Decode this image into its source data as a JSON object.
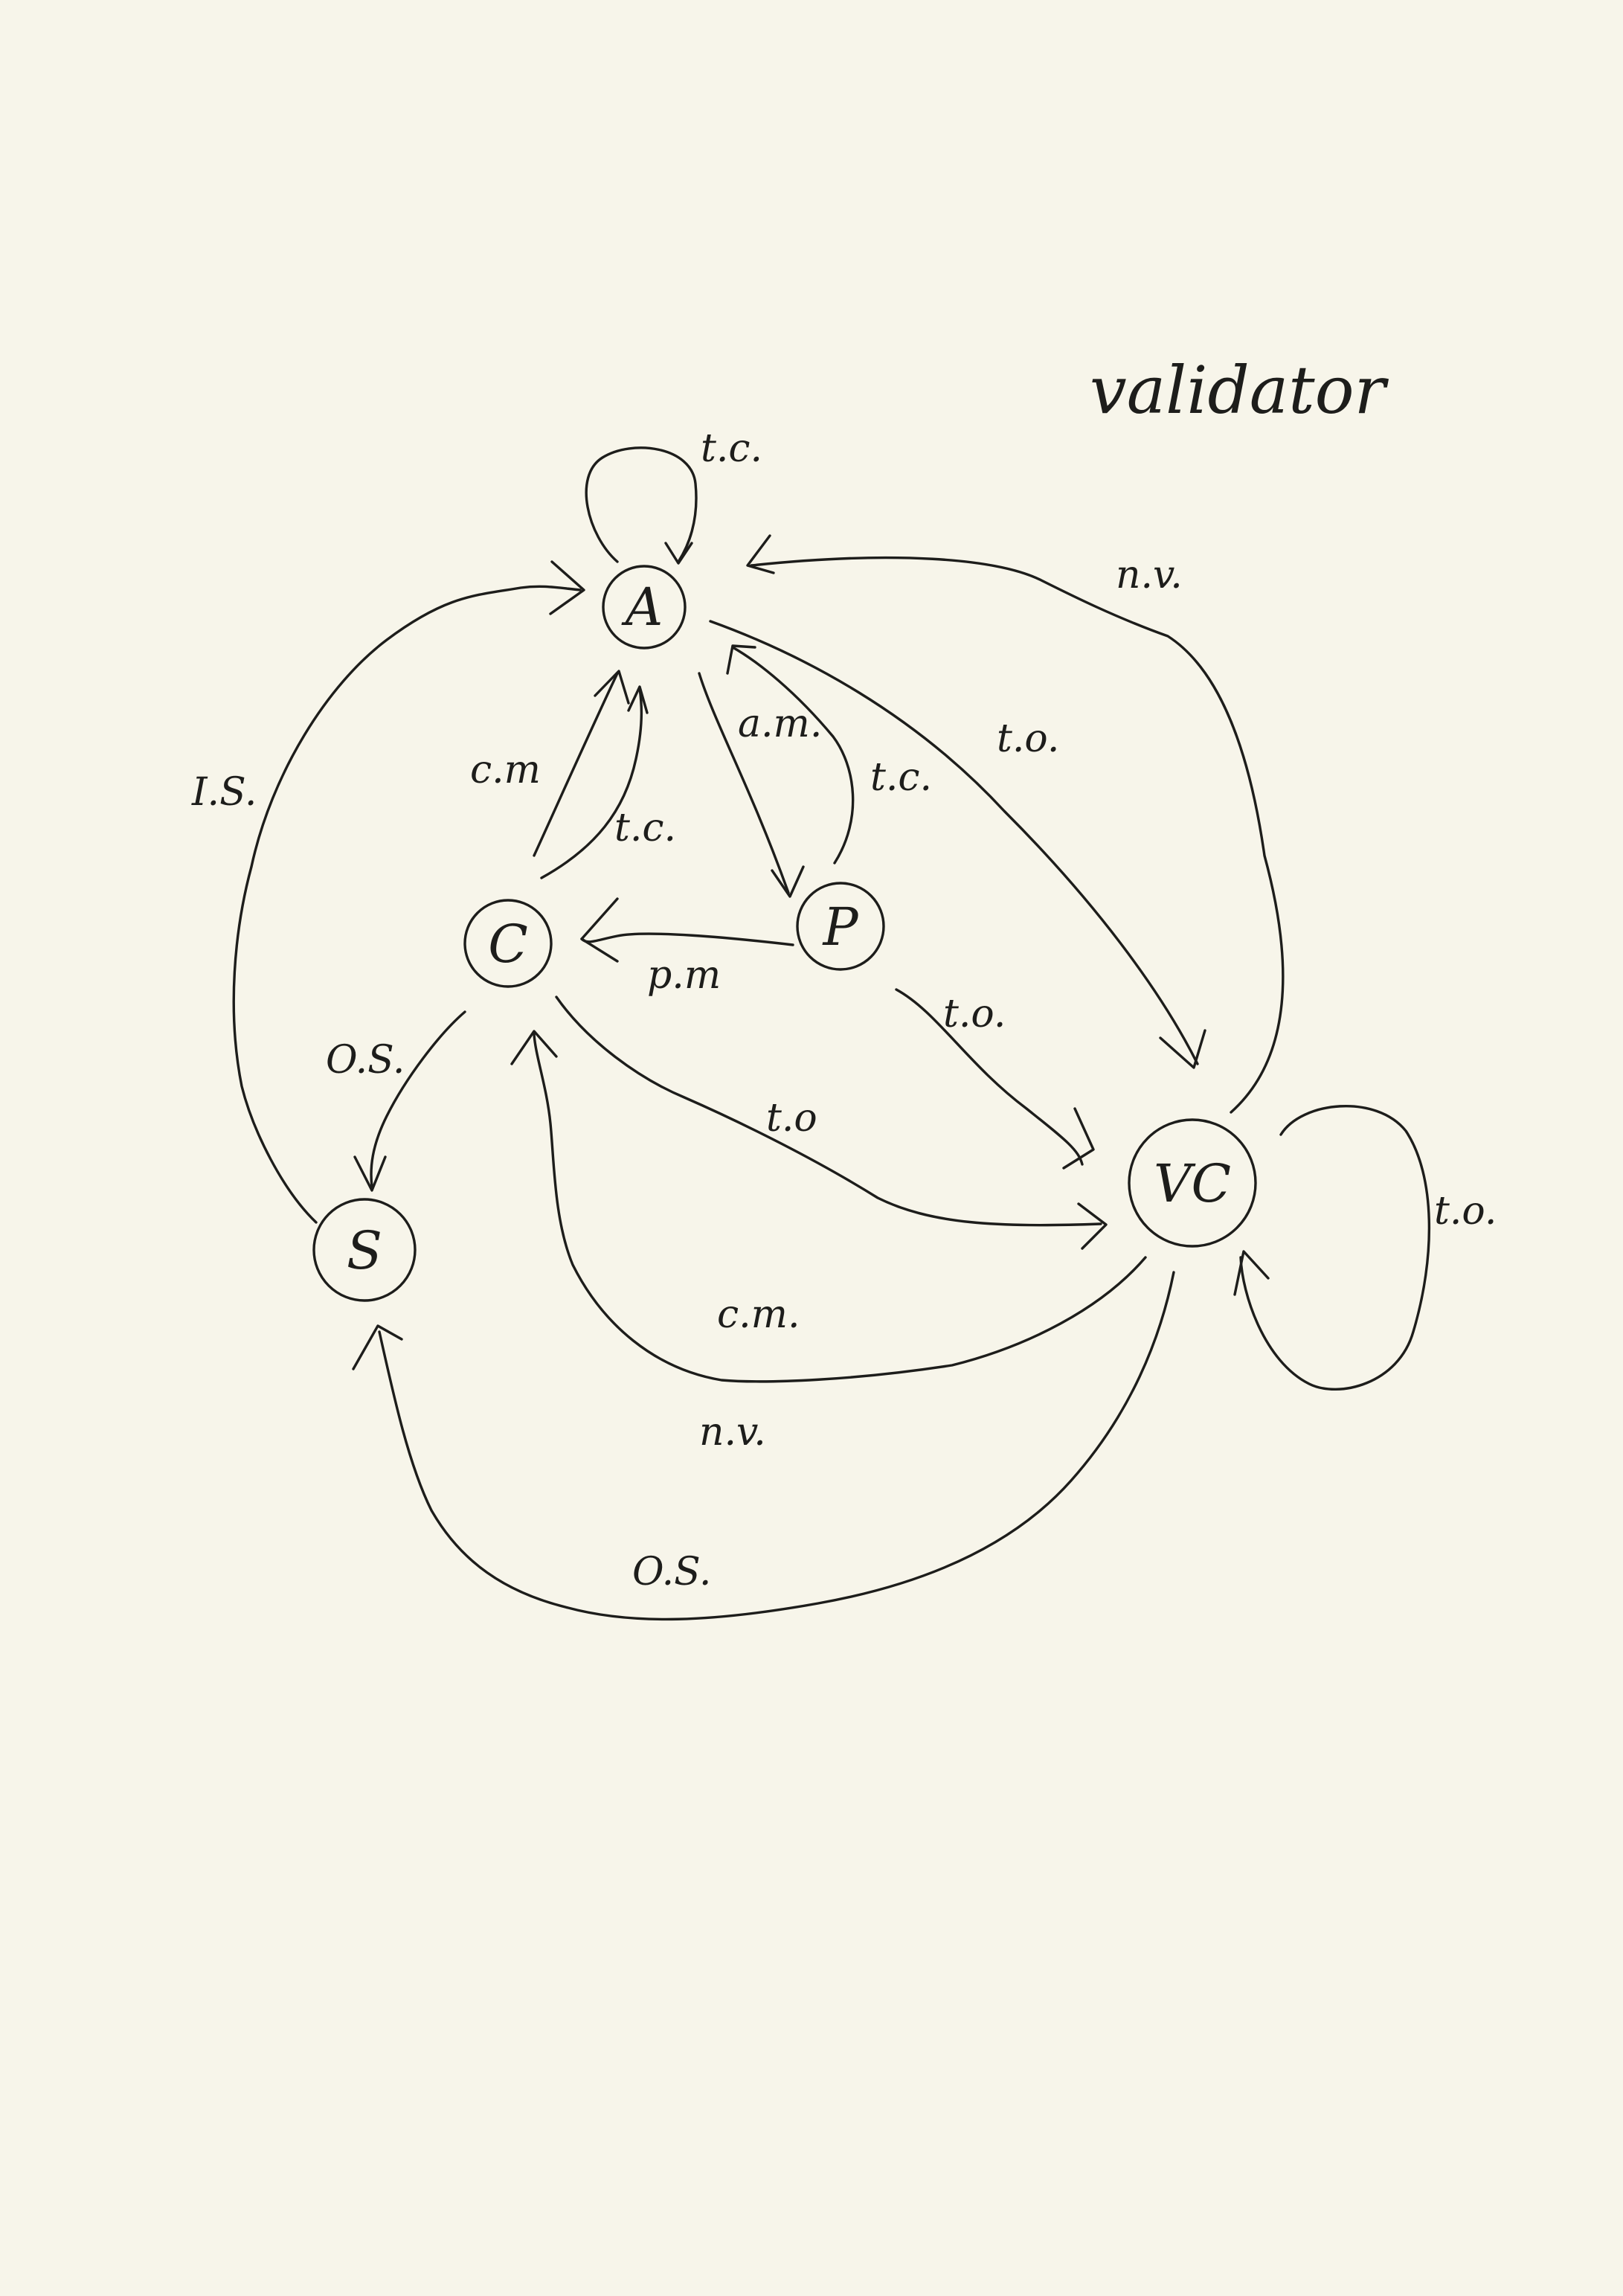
{
  "title": "validator",
  "states": {
    "A": "A",
    "P": "P",
    "C": "C",
    "S": "S",
    "VC": "VC"
  },
  "edge_labels": {
    "a_self": "t.c.",
    "vc_to_a": "n.v.",
    "a_to_vc": "t.o.",
    "a_to_p": "a.m.",
    "p_to_a": "t.c.",
    "c_to_a_cm": "c.m",
    "c_to_a_tc": "t.c.",
    "p_to_c": "p.m",
    "p_to_vc": "t.o.",
    "c_to_vc": "t.o",
    "vc_to_c_cm": "c.m.",
    "vc_to_c_nv": "n.v.",
    "vc_self": "t.o.",
    "s_to_a": "I.S.",
    "c_to_s": "O.S.",
    "vc_to_s": "O.S."
  }
}
